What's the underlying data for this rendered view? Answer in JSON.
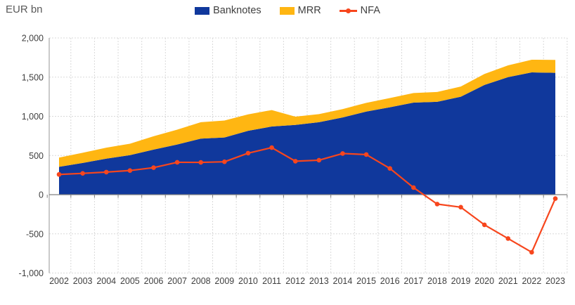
{
  "header": {
    "unit_label": "EUR bn"
  },
  "chart_data": {
    "type": "area",
    "stacked": true,
    "title": "EUR bn",
    "legend_position": "top-center",
    "grid": "dashed-horizontal-and-vertical",
    "xlabel": "",
    "ylabel": "EUR bn",
    "ylim": [
      -1000,
      2000
    ],
    "yticks": [
      {
        "value": 2000,
        "label": "2,000"
      },
      {
        "value": 1500,
        "label": "1,500"
      },
      {
        "value": 1000,
        "label": "1,000"
      },
      {
        "value": 500,
        "label": "500"
      },
      {
        "value": 0,
        "label": "0"
      },
      {
        "value": -500,
        "label": "-500"
      },
      {
        "value": -1000,
        "label": "-1,000"
      }
    ],
    "categories": [
      "2002",
      "2003",
      "2004",
      "2005",
      "2006",
      "2007",
      "2008",
      "2009",
      "2010",
      "2011",
      "2012",
      "2013",
      "2014",
      "2015",
      "2016",
      "2017",
      "2018",
      "2019",
      "2020",
      "2021",
      "2022",
      "2023"
    ],
    "series": [
      {
        "name": "Banknotes",
        "kind": "stacked-area",
        "color": "#10389c",
        "values": [
          355,
          405,
          460,
          505,
          575,
          640,
          715,
          730,
          815,
          870,
          890,
          925,
          985,
          1060,
          1115,
          1175,
          1185,
          1250,
          1400,
          1500,
          1560,
          1555
        ]
      },
      {
        "name": "MRR",
        "kind": "stacked-area",
        "color": "#ffb612",
        "values": [
          118,
          130,
          140,
          145,
          170,
          190,
          210,
          216,
          210,
          210,
          106,
          103,
          107,
          112,
          118,
          122,
          126,
          130,
          140,
          150,
          162,
          165
        ]
      },
      {
        "name": "NFA",
        "kind": "line-with-markers",
        "color": "#f7461d",
        "values": [
          258,
          272,
          288,
          308,
          345,
          413,
          412,
          420,
          530,
          600,
          427,
          440,
          525,
          512,
          335,
          90,
          -120,
          -160,
          -385,
          -560,
          -735,
          -50
        ]
      }
    ],
    "style": {
      "grid_color": "#d9d9d9",
      "axis_color": "#a6a6a6",
      "zero_axis_color": "#808080",
      "tick_label_color": "#404040",
      "marker_radius": 3.3,
      "line_width": 2.2
    }
  }
}
